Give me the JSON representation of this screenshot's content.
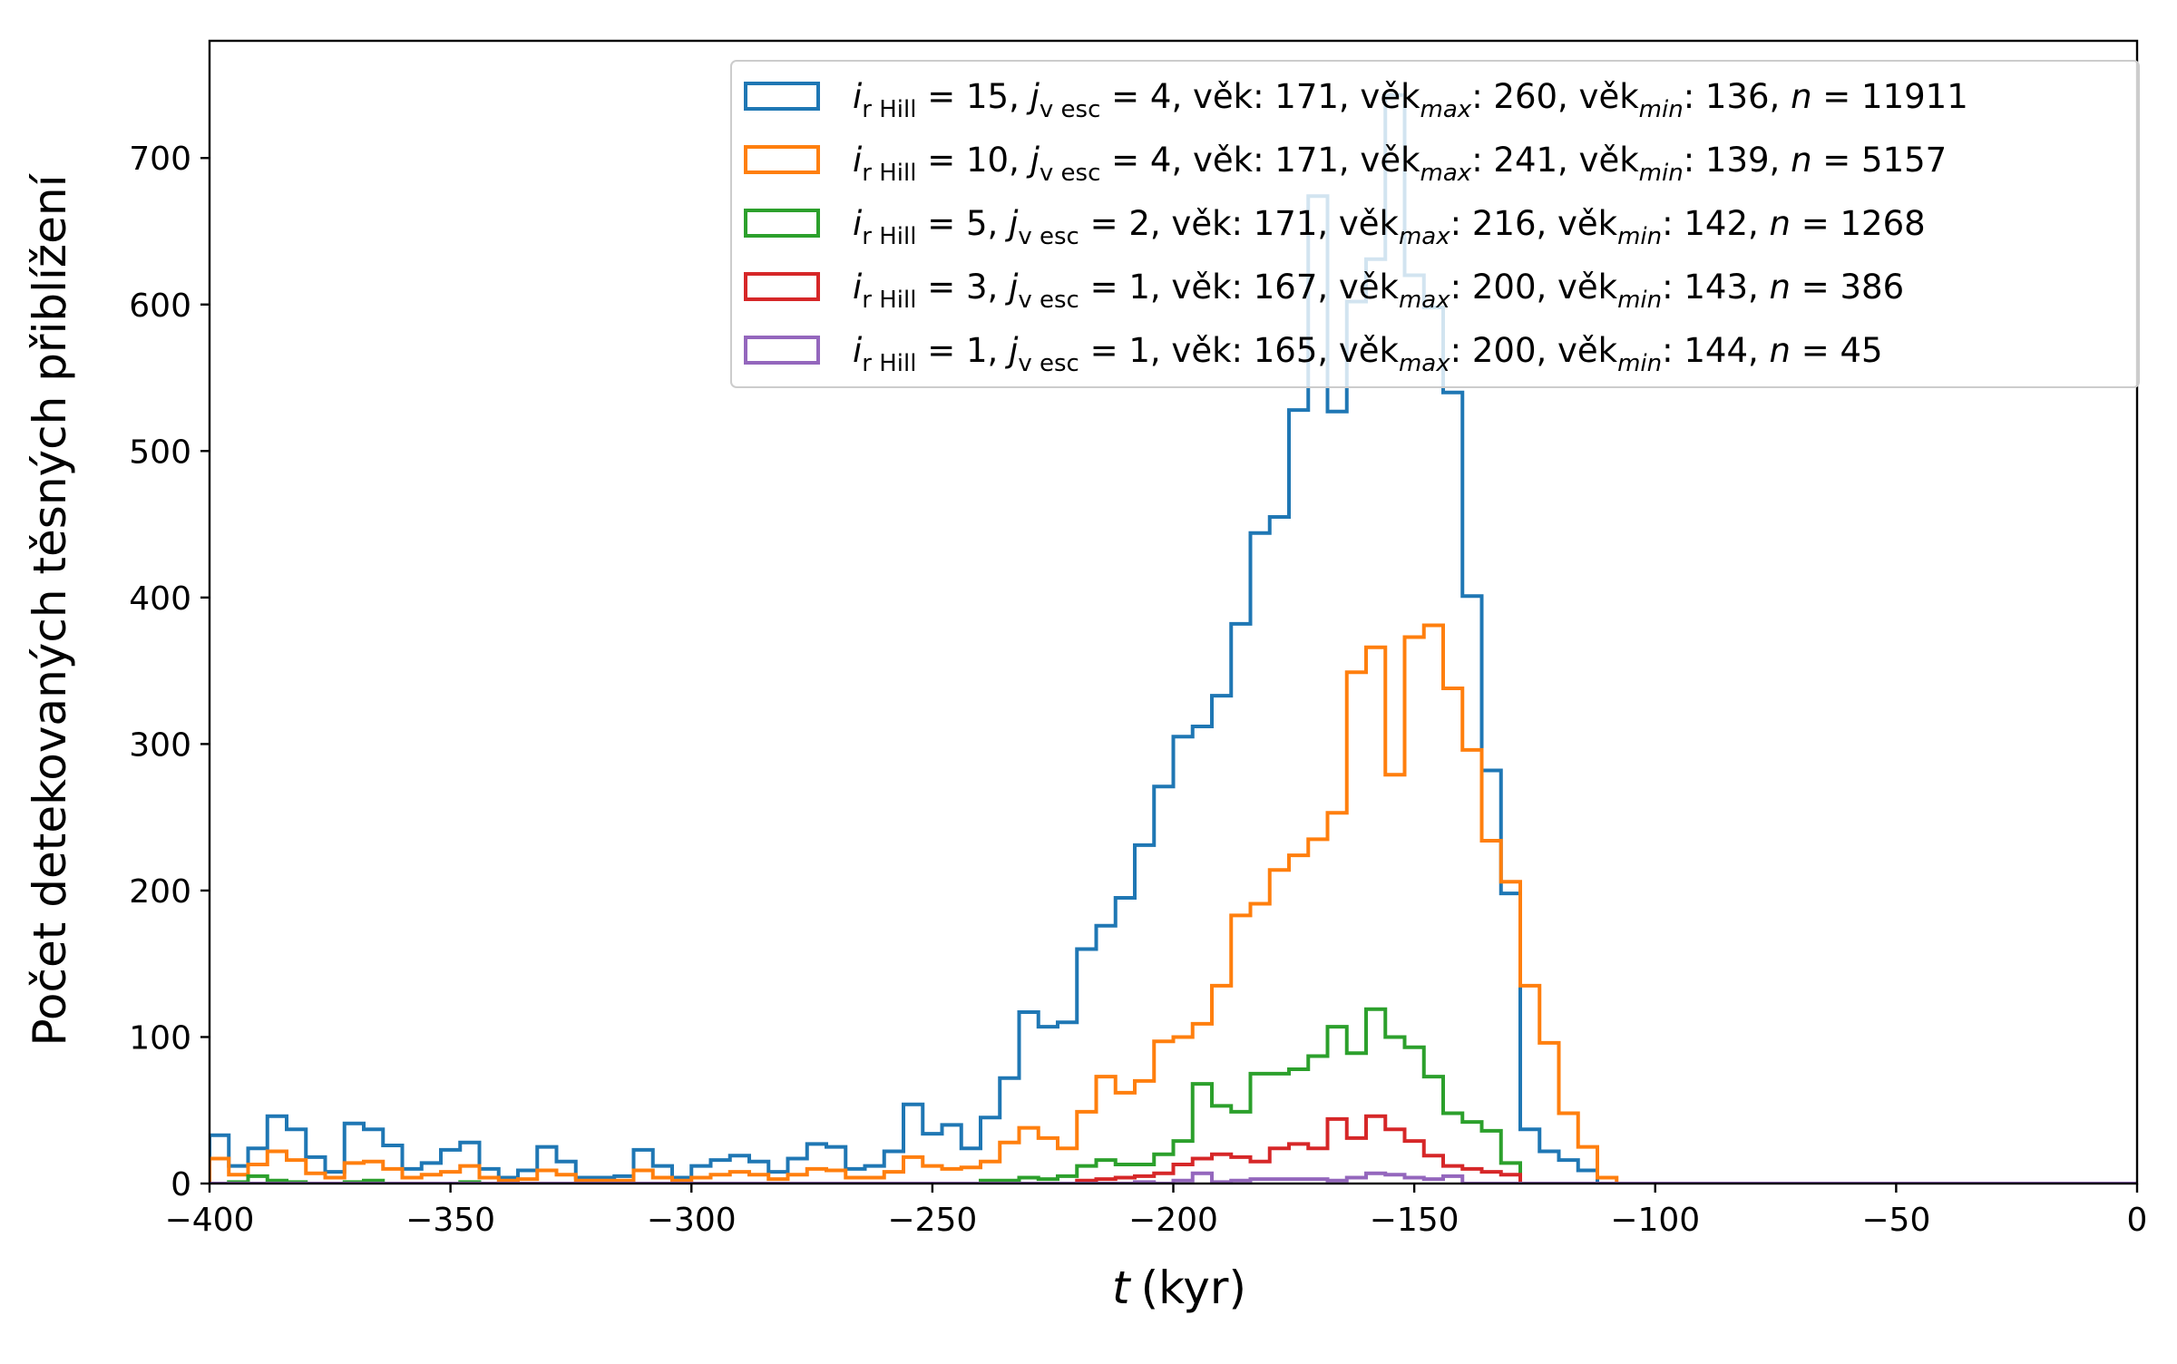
{
  "chart_data": {
    "type": "histogram",
    "xlabel": "t (kyr)",
    "ylabel": "Počet detekovaných těsných přiblížení",
    "xlim": [
      -400,
      0
    ],
    "ylim": [
      0,
      780
    ],
    "bin_width": 4,
    "x_ticks": [
      -400,
      -350,
      -300,
      -250,
      -200,
      -150,
      -100,
      -50,
      0
    ],
    "x_tick_labels": [
      "−400",
      "−350",
      "−300",
      "−250",
      "−200",
      "−150",
      "−100",
      "−50",
      "0"
    ],
    "y_ticks": [
      0,
      100,
      200,
      300,
      400,
      500,
      600,
      700
    ],
    "y_tick_labels": [
      "0",
      "100",
      "200",
      "300",
      "400",
      "500",
      "600",
      "700"
    ],
    "legend_position": "top-right",
    "series": [
      {
        "name": "i_rHill = 15, j_vesc = 4, věk: 171, věk_max: 260, věk_min: 136, n = 11911",
        "color": "#1f77b4",
        "bins": [
          [
            -400,
            33
          ],
          [
            -396,
            12
          ],
          [
            -392,
            24
          ],
          [
            -388,
            46
          ],
          [
            -384,
            37
          ],
          [
            -380,
            18
          ],
          [
            -376,
            8
          ],
          [
            -372,
            41
          ],
          [
            -368,
            37
          ],
          [
            -364,
            26
          ],
          [
            -360,
            10
          ],
          [
            -356,
            14
          ],
          [
            -352,
            23
          ],
          [
            -348,
            28
          ],
          [
            -344,
            10
          ],
          [
            -340,
            4
          ],
          [
            -336,
            9
          ],
          [
            -332,
            25
          ],
          [
            -328,
            15
          ],
          [
            -324,
            4
          ],
          [
            -320,
            4
          ],
          [
            -316,
            5
          ],
          [
            -312,
            23
          ],
          [
            -308,
            12
          ],
          [
            -304,
            4
          ],
          [
            -300,
            12
          ],
          [
            -296,
            16
          ],
          [
            -292,
            19
          ],
          [
            -288,
            15
          ],
          [
            -284,
            8
          ],
          [
            -280,
            17
          ],
          [
            -276,
            27
          ],
          [
            -272,
            25
          ],
          [
            -268,
            10
          ],
          [
            -264,
            12
          ],
          [
            -260,
            22
          ],
          [
            -256,
            54
          ],
          [
            -252,
            34
          ],
          [
            -248,
            40
          ],
          [
            -244,
            24
          ],
          [
            -240,
            45
          ],
          [
            -236,
            72
          ],
          [
            -232,
            117
          ],
          [
            -228,
            107
          ],
          [
            -224,
            110
          ],
          [
            -220,
            160
          ],
          [
            -216,
            176
          ],
          [
            -212,
            195
          ],
          [
            -208,
            231
          ],
          [
            -204,
            271
          ],
          [
            -200,
            305
          ],
          [
            -196,
            312
          ],
          [
            -192,
            333
          ],
          [
            -188,
            382
          ],
          [
            -184,
            444
          ],
          [
            -180,
            455
          ],
          [
            -176,
            528
          ],
          [
            -172,
            674
          ],
          [
            -168,
            527
          ],
          [
            -164,
            602
          ],
          [
            -160,
            631
          ],
          [
            -156,
            743
          ],
          [
            -152,
            620
          ],
          [
            -148,
            598
          ],
          [
            -144,
            540
          ],
          [
            -140,
            401
          ],
          [
            -136,
            282
          ],
          [
            -132,
            198
          ],
          [
            -128,
            37
          ],
          [
            -124,
            22
          ],
          [
            -120,
            16
          ],
          [
            -116,
            9
          ]
        ]
      },
      {
        "name": "i_rHill = 10, j_vesc = 4, věk: 171, věk_max: 241, věk_min: 139, n = 5157",
        "color": "#ff7f0e",
        "bins": [
          [
            -400,
            17
          ],
          [
            -396,
            6
          ],
          [
            -392,
            13
          ],
          [
            -388,
            22
          ],
          [
            -384,
            16
          ],
          [
            -380,
            7
          ],
          [
            -376,
            4
          ],
          [
            -372,
            14
          ],
          [
            -368,
            15
          ],
          [
            -364,
            10
          ],
          [
            -360,
            4
          ],
          [
            -356,
            6
          ],
          [
            -352,
            8
          ],
          [
            -348,
            12
          ],
          [
            -344,
            4
          ],
          [
            -340,
            2
          ],
          [
            -336,
            3
          ],
          [
            -332,
            9
          ],
          [
            -328,
            6
          ],
          [
            -324,
            2
          ],
          [
            -320,
            2
          ],
          [
            -316,
            2
          ],
          [
            -312,
            9
          ],
          [
            -308,
            4
          ],
          [
            -304,
            2
          ],
          [
            -300,
            4
          ],
          [
            -296,
            6
          ],
          [
            -292,
            8
          ],
          [
            -288,
            6
          ],
          [
            -284,
            3
          ],
          [
            -280,
            6
          ],
          [
            -276,
            10
          ],
          [
            -272,
            9
          ],
          [
            -268,
            4
          ],
          [
            -264,
            4
          ],
          [
            -260,
            8
          ],
          [
            -256,
            18
          ],
          [
            -252,
            12
          ],
          [
            -248,
            10
          ],
          [
            -244,
            11
          ],
          [
            -240,
            15
          ],
          [
            -236,
            28
          ],
          [
            -232,
            38
          ],
          [
            -228,
            31
          ],
          [
            -224,
            24
          ],
          [
            -220,
            49
          ],
          [
            -216,
            73
          ],
          [
            -212,
            62
          ],
          [
            -208,
            70
          ],
          [
            -204,
            97
          ],
          [
            -200,
            100
          ],
          [
            -196,
            109
          ],
          [
            -192,
            135
          ],
          [
            -188,
            183
          ],
          [
            -184,
            191
          ],
          [
            -180,
            214
          ],
          [
            -176,
            224
          ],
          [
            -172,
            235
          ],
          [
            -168,
            253
          ],
          [
            -164,
            349
          ],
          [
            -160,
            366
          ],
          [
            -156,
            279
          ],
          [
            -152,
            373
          ],
          [
            -148,
            381
          ],
          [
            -144,
            338
          ],
          [
            -140,
            296
          ],
          [
            -136,
            234
          ],
          [
            -132,
            206
          ],
          [
            -128,
            135
          ],
          [
            -124,
            96
          ],
          [
            -120,
            48
          ],
          [
            -116,
            25
          ],
          [
            -112,
            4
          ]
        ]
      },
      {
        "name": "i_rHill = 5, j_vesc = 2, věk: 171, věk_max: 216, věk_min: 142, n = 1268",
        "color": "#2ca02c",
        "bins": [
          [
            -396,
            1
          ],
          [
            -392,
            5
          ],
          [
            -388,
            2
          ],
          [
            -384,
            1
          ],
          [
            -372,
            1
          ],
          [
            -368,
            2
          ],
          [
            -348,
            1
          ],
          [
            -240,
            2
          ],
          [
            -236,
            2
          ],
          [
            -232,
            4
          ],
          [
            -228,
            3
          ],
          [
            -224,
            5
          ],
          [
            -220,
            12
          ],
          [
            -216,
            16
          ],
          [
            -212,
            13
          ],
          [
            -208,
            13
          ],
          [
            -204,
            20
          ],
          [
            -200,
            29
          ],
          [
            -196,
            68
          ],
          [
            -192,
            53
          ],
          [
            -188,
            49
          ],
          [
            -184,
            75
          ],
          [
            -180,
            75
          ],
          [
            -176,
            78
          ],
          [
            -172,
            87
          ],
          [
            -168,
            107
          ],
          [
            -164,
            89
          ],
          [
            -160,
            119
          ],
          [
            -156,
            100
          ],
          [
            -152,
            93
          ],
          [
            -148,
            73
          ],
          [
            -144,
            48
          ],
          [
            -140,
            42
          ],
          [
            -136,
            36
          ],
          [
            -132,
            14
          ]
        ]
      },
      {
        "name": "i_rHill = 3, j_vesc = 1, věk: 167, věk_max: 200, věk_min: 143, n = 386",
        "color": "#d62728",
        "bins": [
          [
            -220,
            2
          ],
          [
            -216,
            3
          ],
          [
            -212,
            4
          ],
          [
            -208,
            5
          ],
          [
            -204,
            7
          ],
          [
            -200,
            13
          ],
          [
            -196,
            17
          ],
          [
            -192,
            20
          ],
          [
            -188,
            18
          ],
          [
            -184,
            15
          ],
          [
            -180,
            24
          ],
          [
            -176,
            27
          ],
          [
            -172,
            24
          ],
          [
            -168,
            44
          ],
          [
            -164,
            31
          ],
          [
            -160,
            46
          ],
          [
            -156,
            37
          ],
          [
            -152,
            29
          ],
          [
            -148,
            19
          ],
          [
            -144,
            12
          ],
          [
            -140,
            10
          ],
          [
            -136,
            8
          ],
          [
            -132,
            6
          ]
        ]
      },
      {
        "name": "i_rHill = 1, j_vesc = 1, věk: 165, věk_max: 200, věk_min: 144, n = 45",
        "color": "#9467bd",
        "bins": [
          [
            -208,
            1
          ],
          [
            -200,
            2
          ],
          [
            -196,
            7
          ],
          [
            -192,
            1
          ],
          [
            -188,
            2
          ],
          [
            -184,
            3
          ],
          [
            -180,
            3
          ],
          [
            -176,
            3
          ],
          [
            -172,
            3
          ],
          [
            -168,
            2
          ],
          [
            -164,
            4
          ],
          [
            -160,
            7
          ],
          [
            -156,
            6
          ],
          [
            -152,
            4
          ],
          [
            -148,
            3
          ],
          [
            -144,
            5
          ]
        ]
      }
    ]
  },
  "legend": {
    "entries": [
      {
        "i_base": "i",
        "i_sub": "r Hill",
        "i_val": "= 15,",
        "j_base": "j",
        "j_sub": "v esc",
        "j_val": "= 4, věk: 171, věk",
        "max_sub": "max",
        "max_val": ": 260, věk",
        "min_sub": "min",
        "min_val": ": 136,",
        "n_base": "n",
        "n_val": "= 11911"
      },
      {
        "i_base": "i",
        "i_sub": "r Hill",
        "i_val": "= 10,",
        "j_base": "j",
        "j_sub": "v esc",
        "j_val": "= 4, věk: 171, věk",
        "max_sub": "max",
        "max_val": ": 241, věk",
        "min_sub": "min",
        "min_val": ": 139,",
        "n_base": "n",
        "n_val": "= 5157"
      },
      {
        "i_base": "i",
        "i_sub": "r Hill",
        "i_val": "=  5,",
        "j_base": "j",
        "j_sub": "v esc",
        "j_val": "= 2, věk: 171, věk",
        "max_sub": "max",
        "max_val": ": 216, věk",
        "min_sub": "min",
        "min_val": ": 142,",
        "n_base": "n",
        "n_val": "= 1268"
      },
      {
        "i_base": "i",
        "i_sub": "r Hill",
        "i_val": "=  3,",
        "j_base": "j",
        "j_sub": "v esc",
        "j_val": "= 1, věk: 167, věk",
        "max_sub": "max",
        "max_val": ": 200, věk",
        "min_sub": "min",
        "min_val": ": 143,",
        "n_base": "n",
        "n_val": "= 386"
      },
      {
        "i_base": "i",
        "i_sub": "r Hill",
        "i_val": "=  1,",
        "j_base": "j",
        "j_sub": "v esc",
        "j_val": "= 1, věk: 165, věk",
        "max_sub": "max",
        "max_val": ": 200, věk",
        "min_sub": "min",
        "min_val": ": 144,",
        "n_base": "n",
        "n_val": "= 45"
      }
    ]
  },
  "axes": {
    "xlabel_t": "t",
    "xlabel_unit": "(kyr)"
  }
}
